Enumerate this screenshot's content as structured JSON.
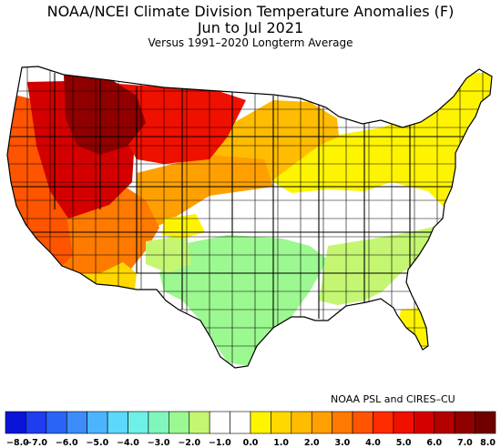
{
  "header": {
    "title_line1": "NOAA/NCEI Climate Division Temperature Anomalies (F)",
    "title_line2": "Jun to Jul 2021",
    "title_line3": "Versus 1991–2020 Longterm Average"
  },
  "credit": "NOAA PSL and CIRES–CU",
  "legend": {
    "bins": [
      {
        "color": "#0a14d8"
      },
      {
        "color": "#1e3cf0"
      },
      {
        "color": "#2a64f6"
      },
      {
        "color": "#3c8cfa"
      },
      {
        "color": "#4cb4fc"
      },
      {
        "color": "#5cd8fa"
      },
      {
        "color": "#6ef0e6"
      },
      {
        "color": "#80f6bc"
      },
      {
        "color": "#9cf890"
      },
      {
        "color": "#c4f672"
      },
      {
        "color": "#ffffff"
      },
      {
        "color": "#ffffff"
      },
      {
        "color": "#fff400"
      },
      {
        "color": "#ffd800"
      },
      {
        "color": "#ffbc00"
      },
      {
        "color": "#ffa000"
      },
      {
        "color": "#ff7a00"
      },
      {
        "color": "#ff5400"
      },
      {
        "color": "#ff2c00"
      },
      {
        "color": "#f01000"
      },
      {
        "color": "#d40000"
      },
      {
        "color": "#b40000"
      },
      {
        "color": "#900000"
      },
      {
        "color": "#700000"
      }
    ],
    "ticks": [
      "−8.0",
      "−7.0",
      "−6.0",
      "−5.0",
      "−4.0",
      "−3.0",
      "−2.0",
      "−1.0",
      "0.0",
      "1.0",
      "2.0",
      "3.0",
      "4.0",
      "5.0",
      "6.0",
      "7.0",
      "8.0"
    ]
  },
  "map": {
    "land_color": "#ffffff",
    "boundary_color": "#000000",
    "regions": [
      {
        "name": "west-coast",
        "color": "#ff5400"
      },
      {
        "name": "great-basin",
        "color": "#d40000"
      },
      {
        "name": "northern-rockies",
        "color": "#900000"
      },
      {
        "name": "northern-plains",
        "color": "#f01000"
      },
      {
        "name": "southwest",
        "color": "#ff7a00"
      },
      {
        "name": "central-plains",
        "color": "#ffa000"
      },
      {
        "name": "upper-midwest",
        "color": "#ffbc00"
      },
      {
        "name": "great-lakes-northeast",
        "color": "#fff400"
      },
      {
        "name": "south-central",
        "color": "#9cf890"
      },
      {
        "name": "southeast",
        "color": "#c4f672"
      },
      {
        "name": "florida",
        "color": "#fff400"
      }
    ]
  }
}
